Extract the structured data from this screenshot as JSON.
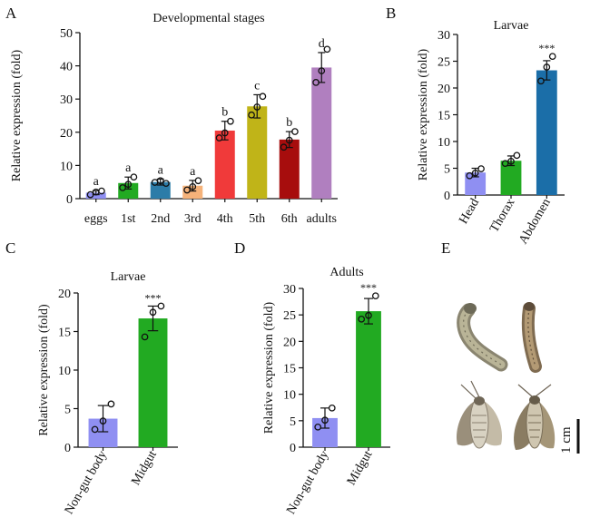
{
  "figure": {
    "panels": {
      "A": "A",
      "B": "B",
      "C": "C",
      "D": "D",
      "E": "E"
    },
    "scale_bar_label": "1 cm",
    "photo_items": [
      "larva-curled",
      "larva-straight",
      "adult-moth-left",
      "adult-moth-right"
    ]
  },
  "chart_data": [
    {
      "panel": "A",
      "type": "bar",
      "title": "Developmental stages",
      "xlabel": "",
      "ylabel": "Relative expression (fold)",
      "ylim": [
        0,
        50
      ],
      "yticks": [
        0,
        10,
        20,
        30,
        40,
        50
      ],
      "categories": [
        "eggs",
        "1st",
        "2nd",
        "3rd",
        "4th",
        "5th",
        "6th",
        "adults"
      ],
      "values": [
        1.8,
        4.7,
        5.0,
        3.9,
        20.5,
        27.8,
        17.8,
        39.5
      ],
      "errors": [
        0.6,
        1.8,
        0.9,
        1.6,
        2.8,
        3.5,
        2.4,
        4.5
      ],
      "points": [
        [
          1.2,
          2.0,
          2.3
        ],
        [
          3.3,
          4.3,
          6.5
        ],
        [
          4.9,
          5.4,
          4.6
        ],
        [
          2.6,
          3.6,
          5.4
        ],
        [
          18.3,
          19.8,
          23.3
        ],
        [
          25.2,
          27.6,
          30.8
        ],
        [
          15.5,
          17.6,
          20.2
        ],
        [
          35.0,
          38.5,
          45.0
        ]
      ],
      "letters": [
        "a",
        "a",
        "a",
        "a",
        "b",
        "c",
        "b",
        "d"
      ],
      "colors": [
        "#8f8ff2",
        "#22aa22",
        "#2c7ca8",
        "#f5b27a",
        "#f03a3a",
        "#c0b418",
        "#a70d0d",
        "#b07fbf"
      ]
    },
    {
      "panel": "B",
      "type": "bar",
      "title": "Larvae",
      "xlabel": "",
      "ylabel": "Relative expression (fold)",
      "ylim": [
        0,
        30
      ],
      "yticks": [
        0,
        5,
        10,
        15,
        20,
        25,
        30
      ],
      "categories": [
        "Head",
        "Thorax",
        "Abdomen"
      ],
      "values": [
        4.2,
        6.4,
        23.3
      ],
      "errors": [
        0.8,
        0.9,
        1.8
      ],
      "points": [
        [
          3.6,
          4.1,
          4.9
        ],
        [
          5.9,
          6.3,
          7.4
        ],
        [
          21.3,
          23.9,
          25.9
        ]
      ],
      "significance": "***",
      "colors": [
        "#8f8ff2",
        "#22aa22",
        "#1b6ea8"
      ]
    },
    {
      "panel": "C",
      "type": "bar",
      "title": "Larvae",
      "xlabel": "",
      "ylabel": "Relative expression (fold)",
      "ylim": [
        0,
        20
      ],
      "yticks": [
        0,
        5,
        10,
        15,
        20
      ],
      "categories": [
        "Non-gut body",
        "Midgut"
      ],
      "values": [
        3.7,
        16.7
      ],
      "errors": [
        1.7,
        1.6
      ],
      "points": [
        [
          2.3,
          3.4,
          5.6
        ],
        [
          14.3,
          17.5,
          18.3
        ]
      ],
      "significance": "***",
      "colors": [
        "#8f8ff2",
        "#22aa22"
      ]
    },
    {
      "panel": "D",
      "type": "bar",
      "title": "Adults",
      "xlabel": "",
      "ylabel": "Relative expression (fold)",
      "ylim": [
        0,
        30
      ],
      "yticks": [
        0,
        5,
        10,
        15,
        20,
        25,
        30
      ],
      "categories": [
        "Non-gut body",
        "Midgut"
      ],
      "values": [
        5.5,
        25.7
      ],
      "errors": [
        1.9,
        2.4
      ],
      "points": [
        [
          3.8,
          5.1,
          7.4
        ],
        [
          24.2,
          24.9,
          28.6
        ]
      ],
      "significance": "***",
      "colors": [
        "#8f8ff2",
        "#22aa22"
      ]
    }
  ]
}
